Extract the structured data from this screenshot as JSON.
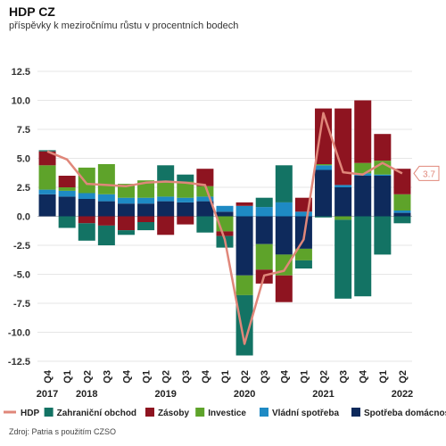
{
  "header": {
    "title": "HDP CZ",
    "subtitle": "příspěvky k meziročnímu růstu v procentních bodech"
  },
  "source": "Zdroj: Patria s použitím CZSO",
  "chart_data": {
    "type": "bar",
    "stacked": true,
    "categories": [
      {
        "quarter": "Q4",
        "year": "2017"
      },
      {
        "quarter": "Q1",
        "year": ""
      },
      {
        "quarter": "Q2",
        "year": "2018"
      },
      {
        "quarter": "Q3",
        "year": ""
      },
      {
        "quarter": "Q4",
        "year": ""
      },
      {
        "quarter": "Q1",
        "year": ""
      },
      {
        "quarter": "Q2",
        "year": "2019"
      },
      {
        "quarter": "Q3",
        "year": ""
      },
      {
        "quarter": "Q4",
        "year": ""
      },
      {
        "quarter": "Q1",
        "year": ""
      },
      {
        "quarter": "Q2",
        "year": "2020"
      },
      {
        "quarter": "Q3",
        "year": ""
      },
      {
        "quarter": "Q4",
        "year": ""
      },
      {
        "quarter": "Q1",
        "year": ""
      },
      {
        "quarter": "Q2",
        "year": "2021"
      },
      {
        "quarter": "Q3",
        "year": ""
      },
      {
        "quarter": "Q4",
        "year": ""
      },
      {
        "quarter": "Q1",
        "year": ""
      },
      {
        "quarter": "Q2",
        "year": "2022"
      }
    ],
    "ylim": [
      -12.5,
      12.5
    ],
    "yticks": [
      "12.5",
      "10.0",
      "7.5",
      "5.0",
      "2.5",
      "0.0",
      "-2.5",
      "-5.0",
      "-7.5",
      "-10.0",
      "-12.5"
    ],
    "series": [
      {
        "name": "Spotřeba domácností",
        "color": "#0e2a5c",
        "values": [
          1.9,
          1.7,
          1.5,
          1.3,
          1.1,
          1.1,
          1.3,
          1.2,
          1.3,
          0.4,
          -5.1,
          -2.4,
          -3.3,
          -2.8,
          4.0,
          2.5,
          3.5,
          3.5,
          0.3
        ]
      },
      {
        "name": "Vládní spotřeba",
        "color": "#1e8ac4",
        "values": [
          0.4,
          0.5,
          0.5,
          0.6,
          0.5,
          0.5,
          0.4,
          0.4,
          0.4,
          0.5,
          0.9,
          0.8,
          1.2,
          0.4,
          0.4,
          0.2,
          0.2,
          0.1,
          0.2
        ]
      },
      {
        "name": "Investice",
        "color": "#5ea32a",
        "values": [
          2.1,
          0.3,
          2.2,
          2.6,
          1.2,
          1.5,
          1.2,
          1.4,
          0.9,
          -1.3,
          -1.7,
          -2.2,
          -1.8,
          -1.0,
          0.1,
          -0.3,
          0.9,
          1.2,
          1.4
        ]
      },
      {
        "name": "Zásoby",
        "color": "#8e1420",
        "values": [
          1.2,
          1.0,
          -0.6,
          -0.8,
          -1.2,
          -0.5,
          -1.6,
          -0.7,
          1.5,
          -0.4,
          0.3,
          -1.2,
          -2.3,
          1.2,
          4.8,
          6.6,
          5.4,
          2.3,
          2.2
        ]
      },
      {
        "name": "Zahraniční obchod",
        "color": "#137364",
        "values": [
          0.1,
          -1.0,
          -1.5,
          -1.7,
          -0.4,
          -0.7,
          1.5,
          0.6,
          -1.4,
          -1.0,
          -5.2,
          0.8,
          3.2,
          -0.7,
          -0.1,
          -6.8,
          -6.9,
          -3.3,
          -0.6
        ]
      },
      {
        "name": "HDP",
        "color": "#e0877a",
        "type": "line",
        "values": [
          5.6,
          4.9,
          2.8,
          2.7,
          2.6,
          2.9,
          3.0,
          2.9,
          2.7,
          -2.0,
          -11.0,
          -5.1,
          -4.7,
          -2.0,
          8.9,
          3.8,
          3.6,
          4.6,
          3.7
        ]
      }
    ],
    "legend_order": [
      "HDP",
      "Zahraniční obchod",
      "Zásoby",
      "Investice",
      "Vládní spotřeba",
      "Spotřeba domácností"
    ],
    "legend_position": "bottom",
    "last_value_label": "3.7",
    "grid": true
  }
}
